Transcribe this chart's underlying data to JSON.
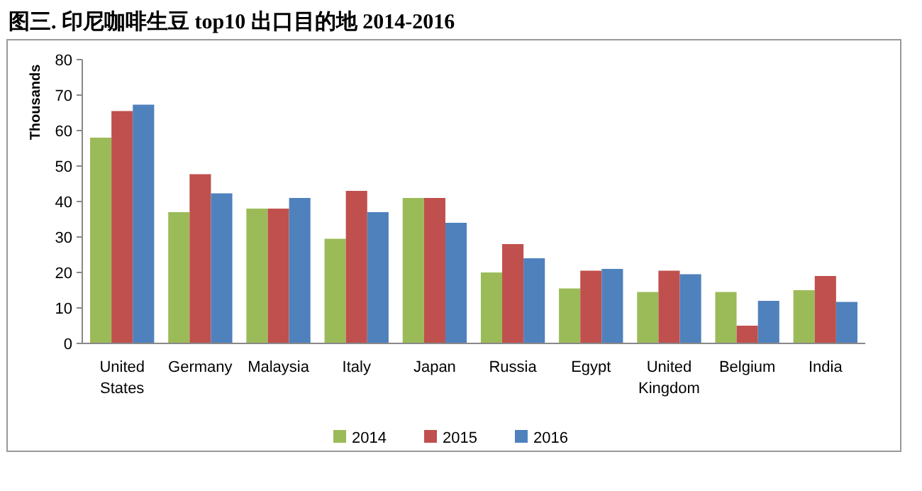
{
  "chart_data": {
    "type": "bar",
    "title": "图三. 印尼咖啡生豆 top10 出口目的地  2014-2016",
    "ylabel": "Thousands",
    "categories": [
      "United States",
      "Germany",
      "Malaysia",
      "Italy",
      "Japan",
      "Russia",
      "Egypt",
      "United Kingdom",
      "Belgium",
      "India"
    ],
    "series": [
      {
        "name": "2014",
        "color": "#9bbb59",
        "values": [
          58,
          37,
          38,
          29.5,
          41,
          20,
          15.5,
          14.5,
          14.5,
          15
        ]
      },
      {
        "name": "2015",
        "color": "#c0504d",
        "values": [
          65.5,
          47.7,
          38,
          43,
          41,
          28,
          20.5,
          20.5,
          5,
          19
        ]
      },
      {
        "name": "2016",
        "color": "#4f81bd",
        "values": [
          67.3,
          42.3,
          41,
          37,
          34,
          24,
          21,
          19.5,
          12,
          11.7
        ]
      }
    ],
    "ylim": [
      0,
      80
    ],
    "yticks": [
      0,
      10,
      20,
      30,
      40,
      50,
      60,
      70,
      80
    ],
    "legend": "bottom"
  }
}
